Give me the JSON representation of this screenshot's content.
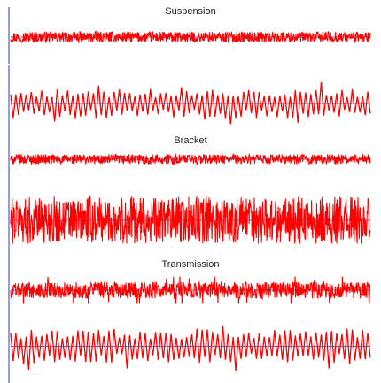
{
  "chart_data": [
    {
      "type": "line",
      "title": "Suspension",
      "series": [
        {
          "values_from": "dense",
          "amplitude": 0.32,
          "baseline": 0.5
        }
      ]
    },
    {
      "type": "line",
      "title": "",
      "series": [
        {
          "values_from": "sparse-spikes",
          "amplitude": 0.85,
          "baseline": 0.5
        }
      ]
    },
    {
      "type": "line",
      "title": "Bracket",
      "series": [
        {
          "values_from": "dense",
          "amplitude": 0.35,
          "baseline": 0.5
        }
      ]
    },
    {
      "type": "line",
      "title": "",
      "series": [
        {
          "values_from": "dense",
          "amplitude": 0.9,
          "baseline": 0.5
        }
      ]
    },
    {
      "type": "line",
      "title": "Transmission",
      "series": [
        {
          "values_from": "dense-spikes",
          "amplitude": 0.55,
          "baseline": 0.5
        }
      ]
    },
    {
      "type": "line",
      "title": "",
      "series": [
        {
          "values_from": "sparse-spikes",
          "amplitude": 0.95,
          "baseline": 0.45
        }
      ]
    }
  ],
  "colors": {
    "signal": "#ff0000",
    "axis": "#1f3fd9",
    "label": "#222222"
  }
}
